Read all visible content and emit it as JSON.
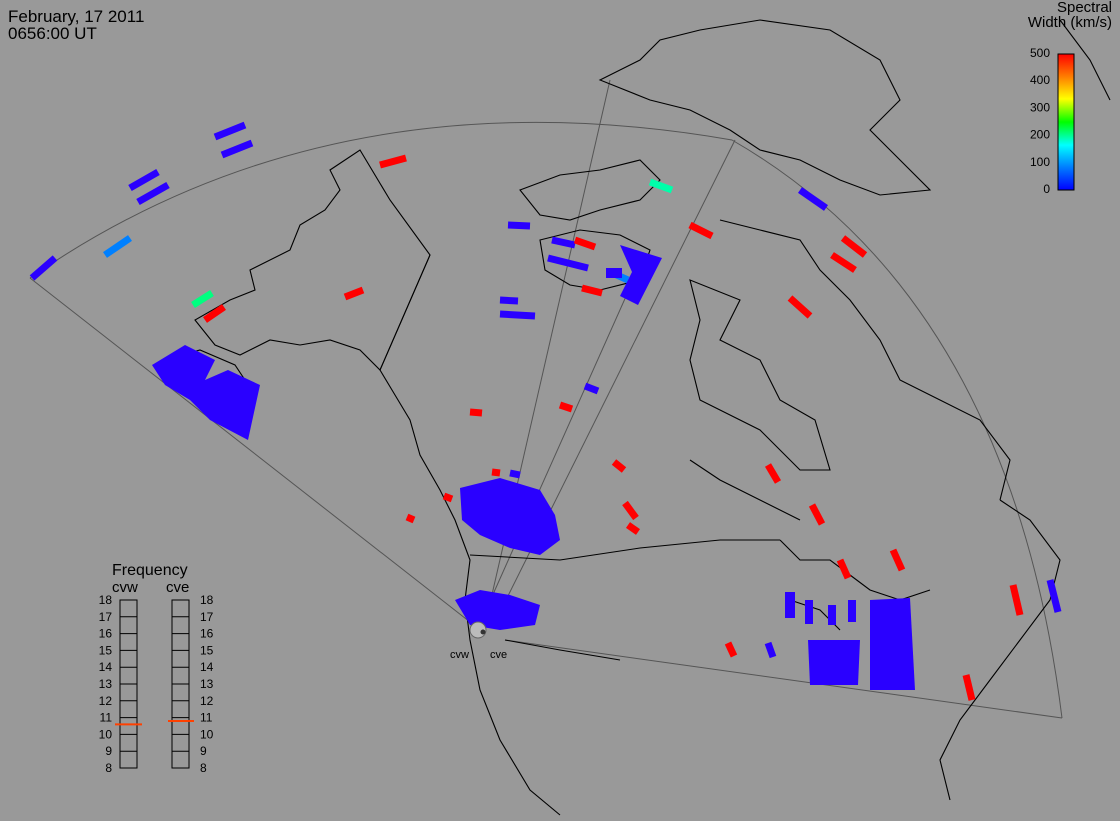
{
  "header": {
    "date": "February, 17 2011",
    "time": "0656:00 UT"
  },
  "colorbar": {
    "title_line1": "Spectral",
    "title_line2": "Width (km/s)",
    "ticks": [
      "500",
      "400",
      "300",
      "200",
      "100",
      "0"
    ],
    "colors": [
      "#ff0000",
      "#ff8000",
      "#ffff00",
      "#00ff00",
      "#00ffff",
      "#0080ff",
      "#0000ff"
    ]
  },
  "frequency_panel": {
    "title": "Frequency",
    "left_radar": "cvw",
    "right_radar": "cve",
    "ticks": [
      "18",
      "17",
      "16",
      "15",
      "14",
      "13",
      "12",
      "11",
      "10",
      "9",
      "8"
    ],
    "cvw_value_mhz": 10.6,
    "cve_value_mhz": 10.8
  },
  "radar_labels": {
    "west": "cvw",
    "east": "cve"
  },
  "colors": {
    "background": "#999999",
    "scatter_blue": "#2a00ff",
    "scatter_red": "#ff0000",
    "marker": "#ff4000"
  }
}
